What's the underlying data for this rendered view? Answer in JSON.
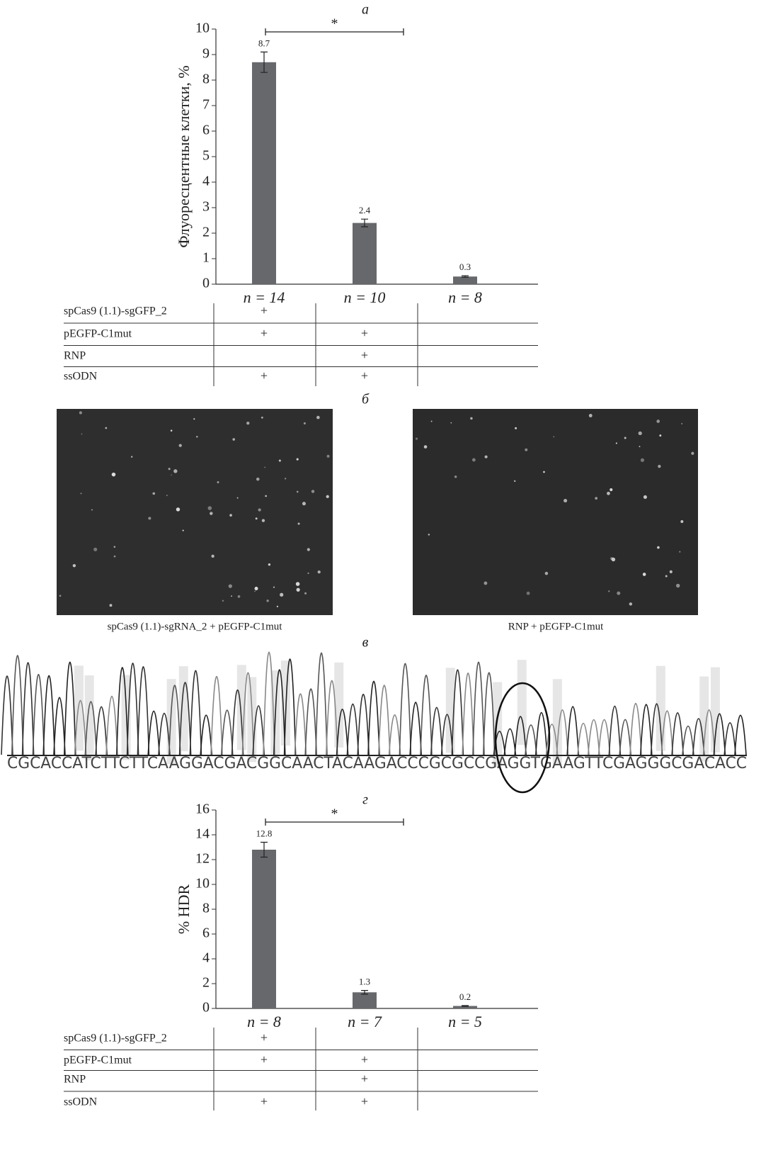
{
  "chart_data": [
    {
      "type": "bar",
      "panel_label": "а",
      "ylabel": "Флуоресцентные клетки, %",
      "categories": [
        "n = 14",
        "n = 10",
        "n = 8"
      ],
      "values": [
        8.7,
        2.4,
        0.3
      ],
      "errors": [
        0.4,
        0.15,
        0.03
      ],
      "color": "#67686c",
      "ylim": [
        0,
        10
      ],
      "yticks": [
        0,
        1,
        2,
        3,
        4,
        5,
        6,
        7,
        8,
        9,
        10
      ],
      "significance": {
        "label": "*",
        "from": 0,
        "to": 1
      },
      "table": {
        "rows": [
          {
            "label": "spCas9 (1.1)-sgGFP_2",
            "cells": [
              "+",
              null,
              null
            ]
          },
          {
            "label": "pEGFP-C1mut",
            "cells": [
              "+",
              "+",
              null
            ]
          },
          {
            "label": "RNP",
            "cells": [
              null,
              "+",
              null
            ]
          },
          {
            "label": "ssODN",
            "cells": [
              "+",
              "+",
              null
            ]
          }
        ]
      }
    },
    {
      "type": "bar",
      "panel_label": "г",
      "ylabel": "% HDR",
      "categories": [
        "n = 8",
        "n = 7",
        "n = 5"
      ],
      "values": [
        12.8,
        1.3,
        0.2
      ],
      "errors": [
        0.6,
        0.15,
        0.03
      ],
      "color": "#67686c",
      "ylim": [
        0,
        16
      ],
      "yticks": [
        0,
        2,
        4,
        6,
        8,
        10,
        12,
        14,
        16
      ],
      "significance": {
        "label": "*",
        "from": 0,
        "to": 1
      },
      "table": {
        "rows": [
          {
            "label": "spCas9 (1.1)-sgGFP_2",
            "cells": [
              "+",
              null,
              null
            ]
          },
          {
            "label": "pEGFP-C1mut",
            "cells": [
              "+",
              "+",
              null
            ]
          },
          {
            "label": "RNP",
            "cells": [
              null,
              "+",
              null
            ]
          },
          {
            "label": "ssODN",
            "cells": [
              "+",
              "+",
              null
            ]
          }
        ]
      }
    }
  ],
  "images": {
    "panel_label": "б",
    "captions": [
      "spCas9 (1.1)-sgRNA_2 + pEGFP-C1mut",
      "RNP + pEGFP-C1mut"
    ]
  },
  "chromatogram": {
    "panel_label": "в",
    "sequence": "CGCACCATCTTCTTCAAGGACGACGGCAACTACAAGACCCGCGCCGAGGTGAAGTTCGAGGGCGACACC"
  }
}
